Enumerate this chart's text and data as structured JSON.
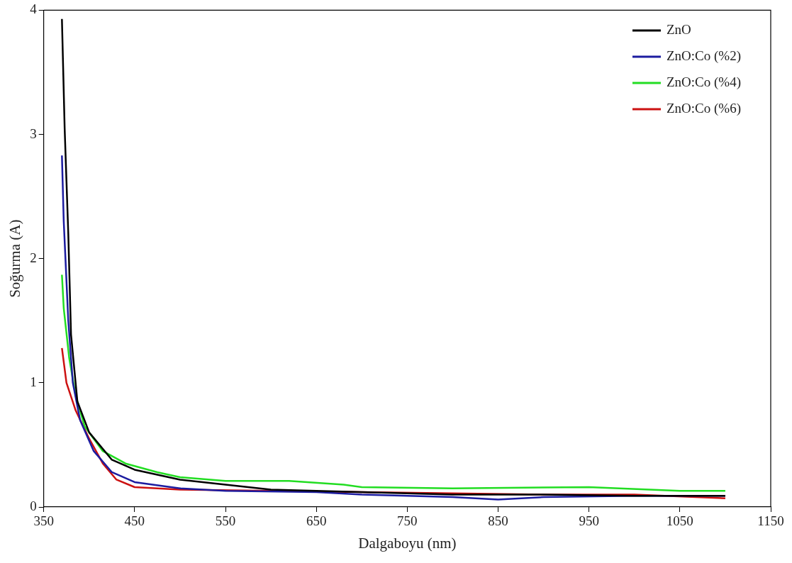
{
  "chart_data": {
    "type": "line",
    "xlabel": "Dalgaboyu (nm)",
    "ylabel": "Soğurma (A)",
    "xlim": [
      350,
      1150
    ],
    "xticks": [
      350,
      450,
      550,
      650,
      750,
      850,
      950,
      1050,
      1150
    ],
    "ylim": [
      0,
      4
    ],
    "yticks": [
      0,
      1,
      2,
      3,
      4
    ],
    "grid": false,
    "legend": "top right",
    "marker": "none",
    "line_style": "solid",
    "series": [
      {
        "name": "ZnO",
        "color": "#000000",
        "x": [
          370,
          373,
          377,
          380,
          387,
          400,
          425,
          450,
          500,
          550,
          600,
          650,
          700,
          800,
          900,
          1000,
          1100
        ],
        "values": [
          3.93,
          3.05,
          2.2,
          1.39,
          0.85,
          0.6,
          0.38,
          0.3,
          0.22,
          0.18,
          0.14,
          0.13,
          0.12,
          0.1,
          0.1,
          0.09,
          0.09
        ]
      },
      {
        "name": "ZnO:Co (%2)",
        "color": "#1c1ca0",
        "x": [
          370,
          372,
          377,
          382,
          390,
          405,
          425,
          450,
          500,
          550,
          650,
          700,
          800,
          850,
          900,
          1000,
          1100
        ],
        "values": [
          2.83,
          2.3,
          1.5,
          1.0,
          0.7,
          0.45,
          0.28,
          0.2,
          0.15,
          0.13,
          0.12,
          0.1,
          0.08,
          0.06,
          0.08,
          0.09,
          0.09
        ]
      },
      {
        "name": "ZnO:Co (%4)",
        "color": "#22dd22",
        "x": [
          370,
          372,
          378,
          385,
          395,
          415,
          440,
          475,
          500,
          550,
          620,
          680,
          700,
          800,
          950,
          1050,
          1100
        ],
        "values": [
          1.87,
          1.6,
          1.2,
          0.9,
          0.65,
          0.45,
          0.35,
          0.28,
          0.24,
          0.21,
          0.21,
          0.18,
          0.16,
          0.15,
          0.16,
          0.13,
          0.13
        ]
      },
      {
        "name": "ZnO:Co (%6)",
        "color": "#cc1111",
        "x": [
          370,
          375,
          385,
          400,
          415,
          430,
          450,
          500,
          600,
          700,
          800,
          900,
          1000,
          1100
        ],
        "values": [
          1.28,
          1.0,
          0.78,
          0.55,
          0.35,
          0.22,
          0.16,
          0.14,
          0.13,
          0.12,
          0.11,
          0.1,
          0.1,
          0.07
        ]
      }
    ]
  }
}
